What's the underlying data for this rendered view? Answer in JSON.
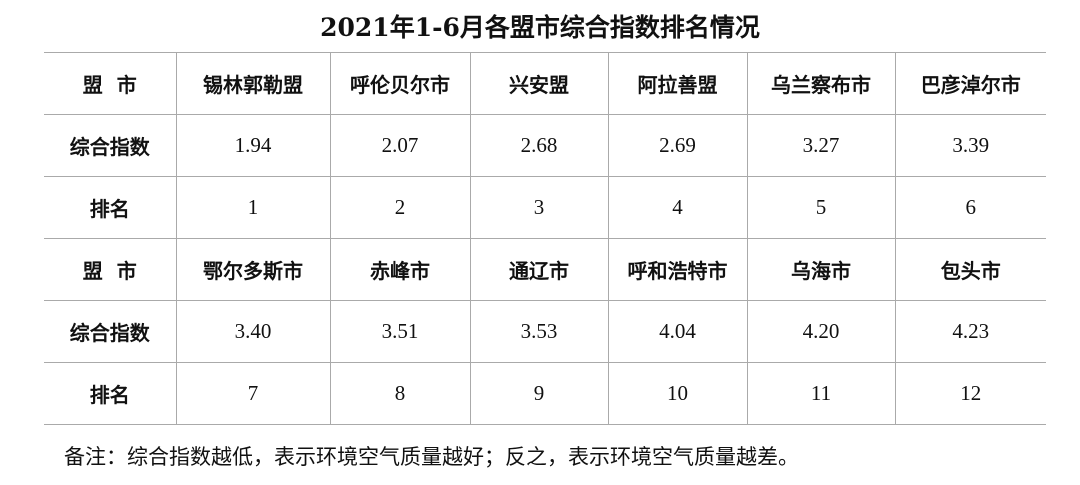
{
  "title": "2021年1-6月各盟市综合指数排名情况",
  "row_labels": {
    "city": "盟  市",
    "index": "综合指数",
    "rank": "排名"
  },
  "blocks": [
    {
      "cities": [
        "锡林郭勒盟",
        "呼伦贝尔市",
        "兴安盟",
        "阿拉善盟",
        "乌兰察布市",
        "巴彦淖尔市"
      ],
      "index": [
        "1.94",
        "2.07",
        "2.68",
        "2.69",
        "3.27",
        "3.39"
      ],
      "rank": [
        "1",
        "2",
        "3",
        "4",
        "5",
        "6"
      ]
    },
    {
      "cities": [
        "鄂尔多斯市",
        "赤峰市",
        "通辽市",
        "呼和浩特市",
        "乌海市",
        "包头市"
      ],
      "index": [
        "3.40",
        "3.51",
        "3.53",
        "4.04",
        "4.20",
        "4.23"
      ],
      "rank": [
        "7",
        "8",
        "9",
        "10",
        "11",
        "12"
      ]
    }
  ],
  "note": "备注：综合指数越低，表示环境空气质量越好；反之，表示环境空气质量越差。"
}
